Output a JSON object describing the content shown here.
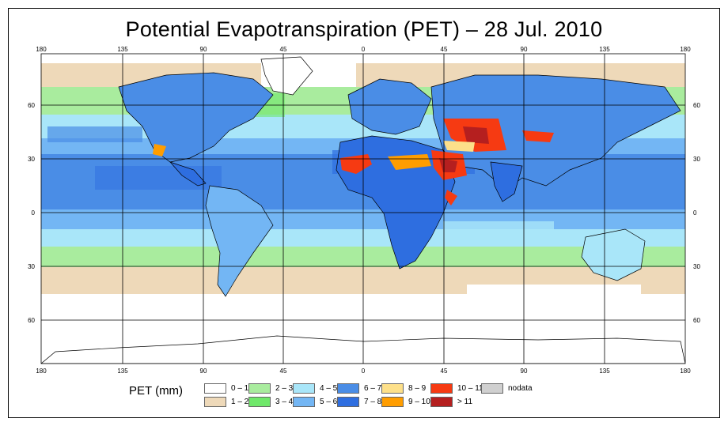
{
  "title": "Potential Evapotranspiration (PET) – 28 Jul. 2010",
  "axes": {
    "lon_labels": [
      "180",
      "135",
      "90",
      "45",
      "0",
      "45",
      "90",
      "135",
      "180"
    ],
    "lat_labels": [
      "60",
      "30",
      "0",
      "30",
      "60"
    ]
  },
  "legend": {
    "title": "PET (mm)",
    "items": [
      {
        "label": "0 – 1",
        "color": "#ffffff"
      },
      {
        "label": "1 – 2",
        "color": "#eed9b9"
      },
      {
        "label": "2 – 3",
        "color": "#a9ec9e"
      },
      {
        "label": "3 – 4",
        "color": "#6fe86a"
      },
      {
        "label": "4 – 5",
        "color": "#a9e6f9"
      },
      {
        "label": "5 – 6",
        "color": "#73b6f4"
      },
      {
        "label": "6 – 7",
        "color": "#4a8de6"
      },
      {
        "label": "7 – 8",
        "color": "#2e6ee0"
      },
      {
        "label": "8 – 9",
        "color": "#fde08a"
      },
      {
        "label": "9 – 10",
        "color": "#ff9d00"
      },
      {
        "label": "10 – 11",
        "color": "#f63a12"
      },
      {
        "label": "> 11",
        "color": "#b51f1f"
      },
      {
        "label": "nodata",
        "color": "#d0d0d0"
      }
    ]
  }
}
